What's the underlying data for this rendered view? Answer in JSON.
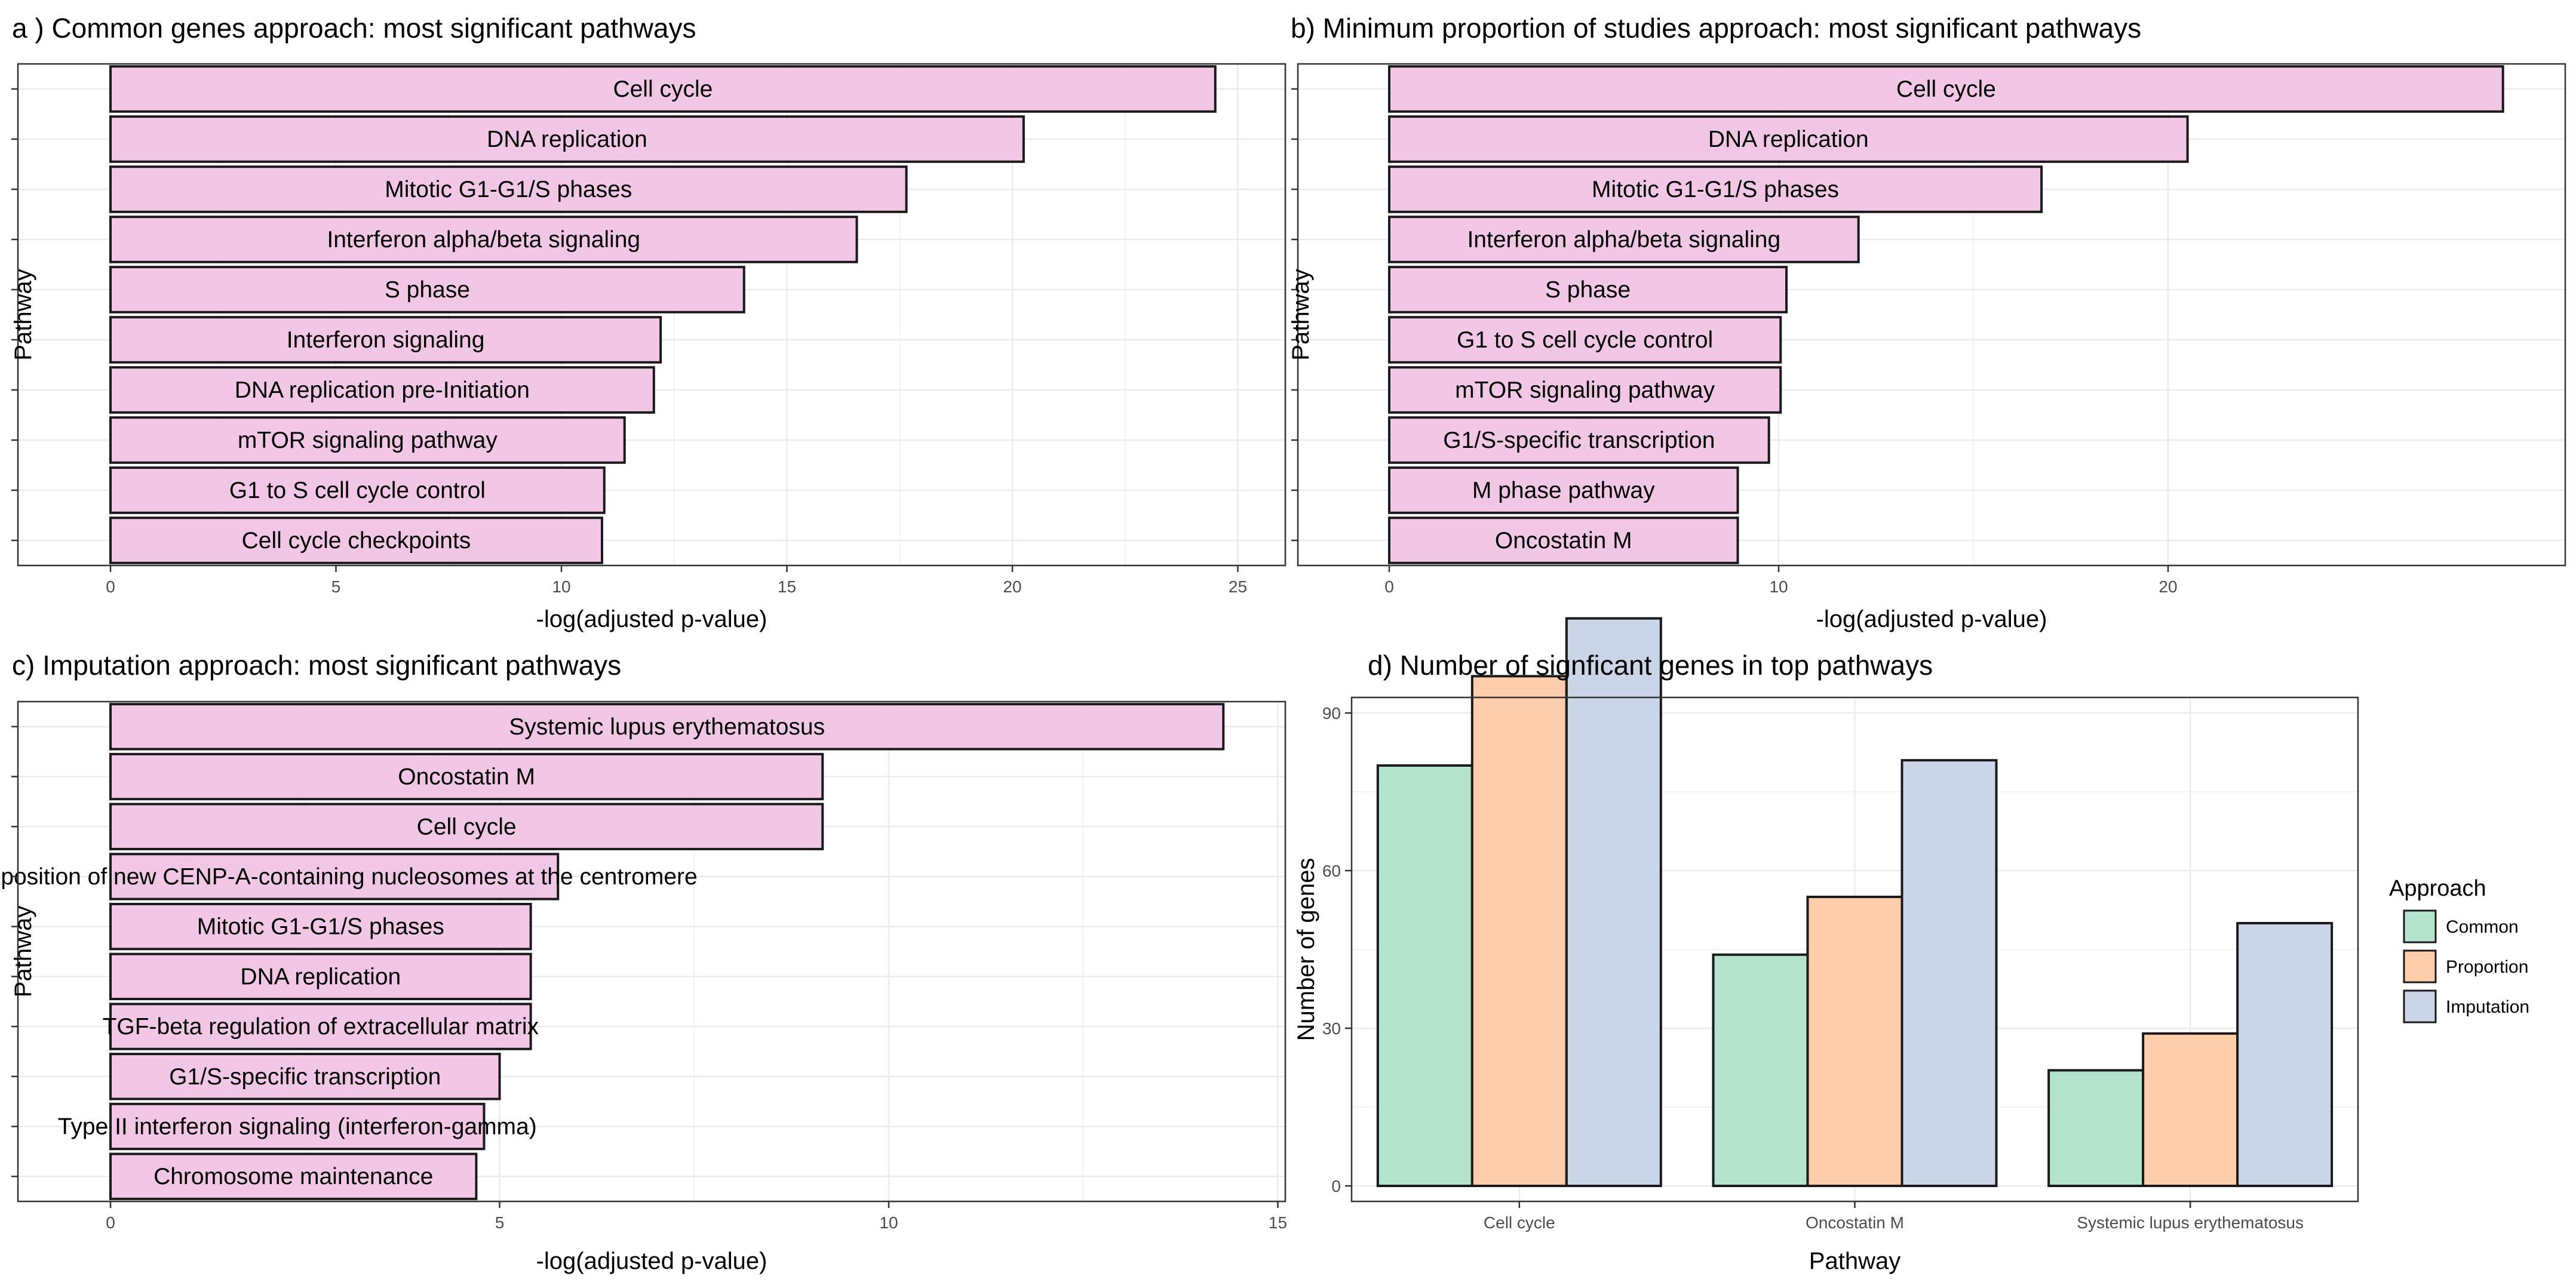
{
  "chart_data": [
    {
      "type": "bar",
      "orientation": "horizontal",
      "title": "a ) Common genes approach: most significant pathways",
      "xlabel": "-log(adjusted p-value)",
      "ylabel": "Pathway",
      "xlim": [
        0,
        25.3
      ],
      "xticks": [
        0,
        5,
        10,
        15,
        20,
        25
      ],
      "categories": [
        "Cell cycle",
        "DNA replication",
        "Mitotic G1-G1/S phases",
        "Interferon alpha/beta signaling",
        "S phase",
        "Interferon signaling",
        "DNA replication pre-Initiation",
        "mTOR signaling pathway",
        "G1 to S cell cycle control",
        "Cell cycle checkpoints"
      ],
      "values": [
        24.5,
        20.25,
        17.65,
        16.55,
        14.05,
        12.2,
        12.05,
        11.4,
        10.95,
        10.9
      ],
      "bar_color": "#f2c7e6"
    },
    {
      "type": "bar",
      "orientation": "horizontal",
      "title": "b) Minimum proportion of studies approach: most significant pathways",
      "xlabel": "-log(adjusted p-value)",
      "ylabel": "Pathway",
      "xlim": [
        0,
        29.8
      ],
      "xticks": [
        0,
        10,
        20
      ],
      "categories": [
        "Cell cycle",
        "DNA replication",
        "Mitotic G1-G1/S phases",
        "Interferon alpha/beta signaling",
        "S phase",
        "G1 to S cell cycle control",
        "mTOR signaling pathway",
        "G1/S-specific transcription",
        "M phase pathway",
        "Oncostatin M"
      ],
      "values": [
        28.6,
        20.5,
        16.75,
        12.05,
        10.2,
        10.05,
        10.05,
        9.75,
        8.95,
        8.95
      ],
      "bar_color": "#f2c7e6"
    },
    {
      "type": "bar",
      "orientation": "horizontal",
      "title": "c) Imputation approach: most significant pathways",
      "xlabel": "-log(adjusted p-value)",
      "ylabel": "Pathway",
      "xlim": [
        0,
        15.1
      ],
      "xticks": [
        0,
        5,
        10,
        15
      ],
      "categories": [
        "Systemic lupus erythematosus",
        "Oncostatin M",
        "Cell cycle",
        "Deposition of new CENP-A-containing nucleosomes at the centromere",
        "Mitotic G1-G1/S phases",
        "DNA replication",
        "TGF-beta regulation of extracellular matrix",
        "G1/S-specific transcription",
        "Type II interferon signaling (interferon-gamma)",
        "Chromosome maintenance"
      ],
      "values": [
        14.3,
        9.15,
        9.15,
        5.75,
        5.4,
        5.4,
        5.4,
        5.0,
        4.8,
        4.7
      ],
      "bar_color": "#f2c7e6"
    },
    {
      "type": "bar",
      "orientation": "vertical",
      "title": "d) Number of signficant genes in top pathways",
      "xlabel": "Pathway",
      "ylabel": "Number of genes",
      "ylim": [
        0,
        113
      ],
      "yticks": [
        0,
        30,
        60,
        90
      ],
      "categories": [
        "Cell cycle",
        "Oncostatin M",
        "Systemic lupus erythematosus"
      ],
      "series": [
        {
          "name": "Common",
          "values": [
            80,
            44,
            22
          ],
          "color": "#b3e2cd"
        },
        {
          "name": "Proportion",
          "values": [
            97,
            55,
            29
          ],
          "color": "#fdcdac"
        },
        {
          "name": "Imputation",
          "values": [
            108,
            81,
            50
          ],
          "color": "#cbd5e8"
        }
      ],
      "legend_title": "Approach",
      "legend_position": "right"
    }
  ]
}
